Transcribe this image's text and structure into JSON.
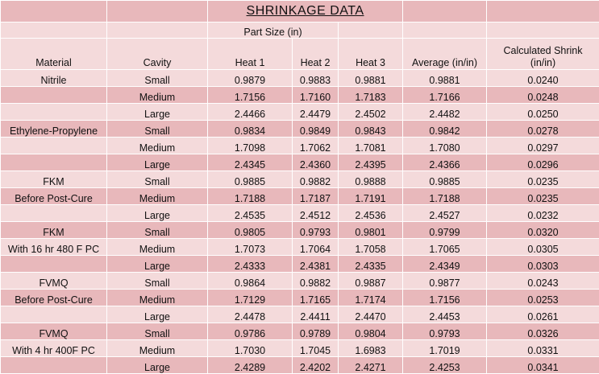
{
  "title": "SHRINKAGE  DATA",
  "subheader": "Part Size (in)",
  "headers": {
    "material": "Material",
    "cavity": "Cavity",
    "heat1": "Heat 1",
    "heat2": "Heat 2",
    "heat3": "Heat 3",
    "average": "Average (in/in)",
    "shrink": "Calculated Shrink (in/in)"
  },
  "rows": [
    [
      "Nitrile",
      "Small",
      "0.9879",
      "0.9883",
      "0.9881",
      "0.9881",
      "0.0240"
    ],
    [
      "",
      "Medium",
      "1.7156",
      "1.7160",
      "1.7183",
      "1.7166",
      "0.0248"
    ],
    [
      "",
      "Large",
      "2.4466",
      "2.4479",
      "2.4502",
      "2.4482",
      "0.0250"
    ],
    [
      "Ethylene-Propylene",
      "Small",
      "0.9834",
      "0.9849",
      "0.9843",
      "0.9842",
      "0.0278"
    ],
    [
      "",
      "Medium",
      "1.7098",
      "1.7062",
      "1.7081",
      "1.7080",
      "0.0297"
    ],
    [
      "",
      "Large",
      "2.4345",
      "2.4360",
      "2.4395",
      "2.4366",
      "0.0296"
    ],
    [
      "FKM",
      "Small",
      "0.9885",
      "0.9882",
      "0.9888",
      "0.9885",
      "0.0235"
    ],
    [
      "Before Post-Cure",
      "Medium",
      "1.7188",
      "1.7187",
      "1.7191",
      "1.7188",
      "0.0235"
    ],
    [
      "",
      "Large",
      "2.4535",
      "2.4512",
      "2.4536",
      "2.4527",
      "0.0232"
    ],
    [
      "FKM",
      "Small",
      "0.9805",
      "0.9793",
      "0.9801",
      "0.9799",
      "0.0320"
    ],
    [
      "With 16 hr 480 F PC",
      "Medium",
      "1.7073",
      "1.7064",
      "1.7058",
      "1.7065",
      "0.0305"
    ],
    [
      "",
      "Large",
      "2.4333",
      "2.4381",
      "2.4335",
      "2.4349",
      "0.0303"
    ],
    [
      "FVMQ",
      "Small",
      "0.9864",
      "0.9882",
      "0.9887",
      "0.9877",
      "0.0243"
    ],
    [
      "Before Post-Cure",
      "Medium",
      "1.7129",
      "1.7165",
      "1.7174",
      "1.7156",
      "0.0253"
    ],
    [
      "",
      "Large",
      "2.4478",
      "2.4411",
      "2.4470",
      "2.4453",
      "0.0261"
    ],
    [
      "FVMQ",
      "Small",
      "0.9786",
      "0.9789",
      "0.9804",
      "0.9793",
      "0.0326"
    ],
    [
      "With 4 hr 400F PC",
      "Medium",
      "1.7030",
      "1.7045",
      "1.6983",
      "1.7019",
      "0.0331"
    ],
    [
      "",
      "Large",
      "2.4289",
      "2.4202",
      "2.4271",
      "2.4253",
      "0.0341"
    ]
  ],
  "colors": {
    "dark_row": "#e8b8bb",
    "light_row": "#f4dadb"
  }
}
